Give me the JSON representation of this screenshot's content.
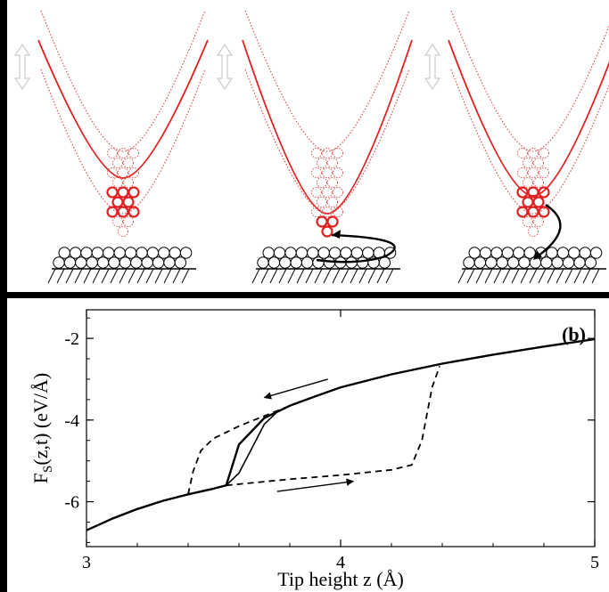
{
  "figure": {
    "panel_label": "(b)",
    "xlabel": "Tip height z (Å)",
    "ylabel_main": "F",
    "ylabel_sub": "S",
    "ylabel_rest": "(z,t) (eV/Å)"
  },
  "chart_data": {
    "type": "line",
    "xlim": [
      3,
      5
    ],
    "ylim": [
      -7.1,
      -1.3
    ],
    "x_ticks": [
      3,
      4,
      5
    ],
    "y_ticks": [
      -2,
      -4,
      -6
    ],
    "x_tick_labels": [
      "3",
      "4",
      "5"
    ],
    "y_tick_labels": [
      "-2",
      "-4",
      "-6"
    ],
    "grid": false,
    "series": [
      {
        "style": "solid-thick",
        "x": [
          3.0,
          3.1,
          3.2,
          3.3,
          3.4,
          3.5,
          3.55,
          3.6,
          3.7,
          3.8,
          3.9,
          4.0,
          4.2,
          4.4,
          4.6,
          4.8,
          5.0
        ],
        "y": [
          -6.7,
          -6.42,
          -6.18,
          -5.98,
          -5.82,
          -5.68,
          -5.6,
          -4.6,
          -3.95,
          -3.65,
          -3.42,
          -3.2,
          -2.88,
          -2.62,
          -2.4,
          -2.2,
          -2.02
        ]
      },
      {
        "style": "solid-thin",
        "x": [
          3.55,
          3.6,
          3.65,
          3.7,
          3.75,
          3.8
        ],
        "y": [
          -5.6,
          -5.3,
          -4.7,
          -4.1,
          -3.8,
          -3.65
        ]
      },
      {
        "style": "dashed",
        "x": [
          3.4,
          3.42,
          3.45,
          3.5,
          3.6,
          3.7,
          3.8
        ],
        "y": [
          -5.82,
          -5.25,
          -4.75,
          -4.45,
          -4.15,
          -3.9,
          -3.65
        ]
      },
      {
        "style": "dashed",
        "x": [
          3.55,
          3.8,
          4.0,
          4.2,
          4.28,
          4.32,
          4.36,
          4.39
        ],
        "y": [
          -5.6,
          -5.45,
          -5.35,
          -5.22,
          -5.1,
          -4.5,
          -3.2,
          -2.68
        ]
      }
    ],
    "arrows": [
      {
        "from": [
          3.95,
          -3.0
        ],
        "to": [
          3.7,
          -3.45
        ],
        "direction": "left"
      },
      {
        "from": [
          3.75,
          -5.75
        ],
        "to": [
          4.05,
          -5.5
        ],
        "direction": "right"
      }
    ]
  },
  "diagram": {
    "panels": [
      "tip-left",
      "tip-middle",
      "tip-right"
    ],
    "colors": {
      "tip": "#e02020",
      "background": "#000000",
      "atoms": "#ffffff",
      "arrow": "#000000"
    }
  }
}
